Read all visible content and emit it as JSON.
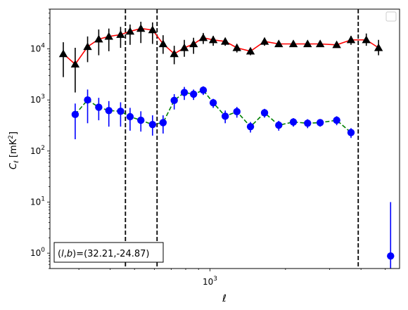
{
  "chart_data": {
    "type": "line",
    "title": "",
    "xlabel": "ℓ",
    "ylabel": "C_ℓ [mK²]",
    "xscale": "log",
    "yscale": "log",
    "xlim": [
      230,
      5700
    ],
    "ylim": [
      0.5,
      60000
    ],
    "grid": false,
    "legend": "top-right",
    "annotation": "(l,b)=(32.21,-24.87)",
    "x_tick_labels": [
      {
        "value": 1000,
        "label": "10^3"
      }
    ],
    "y_tick_labels": [
      {
        "value": 1,
        "label": "10^0"
      },
      {
        "value": 10,
        "label": "10^1"
      },
      {
        "value": 100,
        "label": "10^2"
      },
      {
        "value": 1000,
        "label": "10^3"
      },
      {
        "value": 10000,
        "label": "10^4"
      }
    ],
    "vlines": [
      460,
      615,
      3900
    ],
    "series": [
      {
        "color": "#ff0000",
        "marker": "triangle",
        "marker_color": "#000000",
        "linestyle": "solid",
        "x": [
          260,
          290,
          325,
          360,
          395,
          440,
          480,
          530,
          590,
          650,
          720,
          790,
          860,
          940,
          1030,
          1150,
          1280,
          1450,
          1650,
          1880,
          2150,
          2450,
          2750,
          3200,
          3650,
          4200,
          4700,
          5250
        ],
        "y": [
          8000,
          5000,
          11000,
          15500,
          17500,
          19000,
          22000,
          25000,
          23500,
          12500,
          8000,
          10500,
          12500,
          16500,
          15000,
          14000,
          10500,
          9000,
          14000,
          12500,
          12500,
          12500,
          12500,
          12000,
          15000,
          15000,
          10500,
          null
        ],
        "err_low": [
          2800,
          1400,
          5500,
          7500,
          9000,
          10500,
          12000,
          13000,
          12500,
          8000,
          5000,
          7000,
          8000,
          12500,
          11500,
          11500,
          8500,
          7500,
          11500,
          11000,
          11000,
          11000,
          11000,
          10500,
          12000,
          11500,
          7500,
          null
        ],
        "err_high": [
          13500,
          10500,
          17500,
          24000,
          25000,
          27000,
          30000,
          34000,
          33000,
          18500,
          11500,
          15000,
          16500,
          20500,
          18000,
          16500,
          12500,
          10500,
          16500,
          14000,
          14000,
          14000,
          14000,
          13500,
          18000,
          20000,
          15000,
          null
        ]
      },
      {
        "color": "#008000",
        "marker": "circle",
        "marker_color": "#0000ff",
        "linestyle": "dashed",
        "x": [
          260,
          290,
          325,
          360,
          395,
          440,
          480,
          530,
          590,
          650,
          720,
          790,
          860,
          940,
          1030,
          1150,
          1280,
          1450,
          1650,
          1880,
          2150,
          2450,
          2750,
          3200,
          3650,
          4200,
          4700,
          5250
        ],
        "y": [
          null,
          520,
          1000,
          720,
          620,
          600,
          470,
          400,
          330,
          360,
          980,
          1400,
          1300,
          1550,
          880,
          480,
          590,
          300,
          560,
          320,
          370,
          350,
          360,
          400,
          230,
          null,
          null,
          0.88
        ],
        "err_low": [
          null,
          170,
          350,
          400,
          300,
          300,
          250,
          240,
          200,
          220,
          650,
          1000,
          1000,
          1250,
          700,
          350,
          450,
          230,
          450,
          250,
          300,
          280,
          300,
          320,
          180,
          null,
          null,
          0.5
        ],
        "err_high": [
          null,
          850,
          1600,
          1100,
          950,
          900,
          700,
          600,
          500,
          500,
          1300,
          1800,
          1600,
          1850,
          1050,
          620,
          730,
          370,
          670,
          390,
          440,
          420,
          420,
          480,
          280,
          null,
          null,
          10
        ]
      }
    ]
  }
}
